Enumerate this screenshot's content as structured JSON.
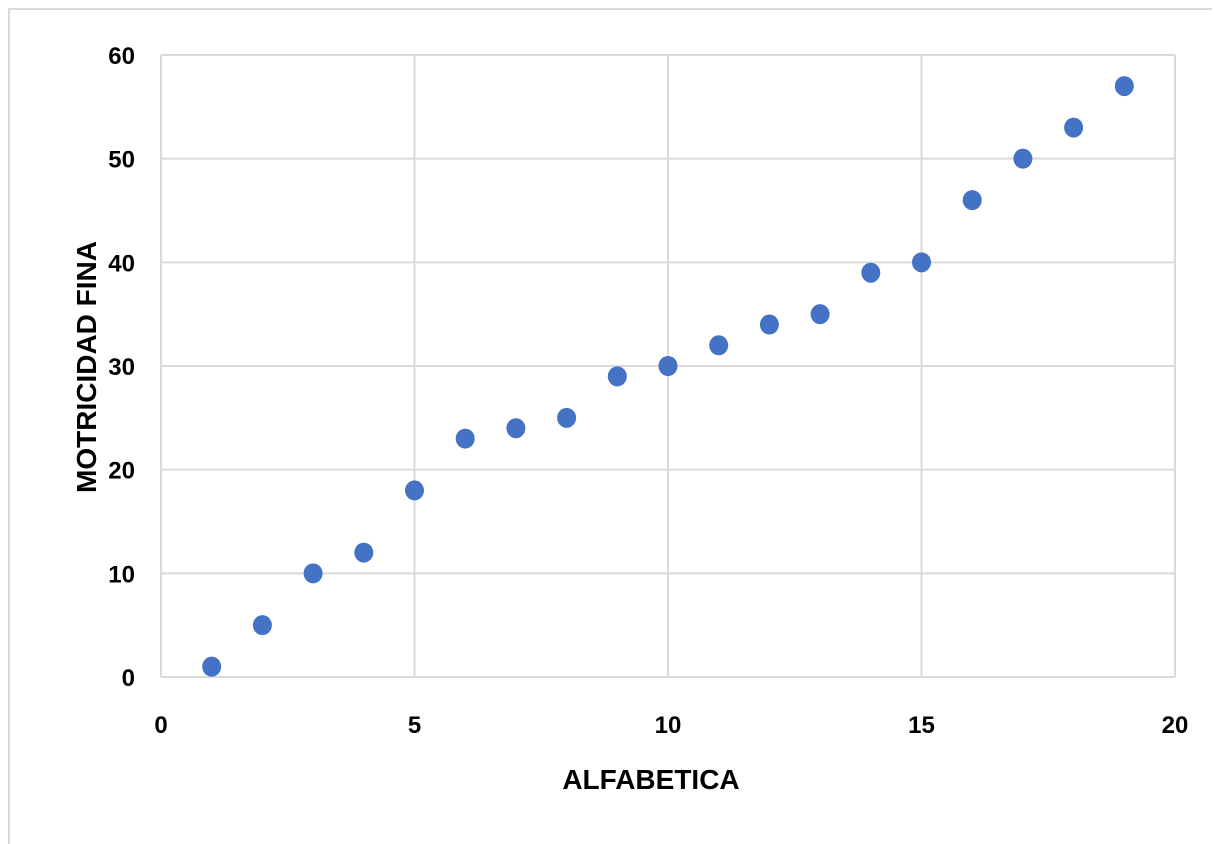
{
  "chart_data": {
    "type": "scatter",
    "title": "",
    "xlabel": "ALFABETICA",
    "ylabel": "MOTRICIDAD FINA",
    "xlim": [
      0,
      20
    ],
    "ylim": [
      0,
      60
    ],
    "x_ticks": [
      0,
      5,
      10,
      15,
      20
    ],
    "y_ticks": [
      0,
      10,
      20,
      30,
      40,
      50,
      60
    ],
    "grid": true,
    "legend": "none",
    "marker_color": "#4472C4",
    "grid_color": "#d9d9d9",
    "series": [
      {
        "x": [
          1,
          2,
          3,
          4,
          5,
          6,
          7,
          8,
          9,
          10,
          11,
          12,
          13,
          14,
          15,
          16,
          17,
          18,
          19
        ],
        "y": [
          1,
          5,
          10,
          12,
          18,
          23,
          24,
          25,
          29,
          30,
          32,
          34,
          35,
          39,
          40,
          46,
          50,
          53,
          57
        ]
      }
    ]
  }
}
